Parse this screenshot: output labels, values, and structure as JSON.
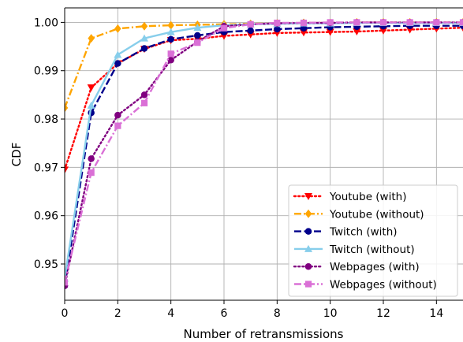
{
  "chart_data": {
    "type": "line",
    "title": "",
    "xlabel": "Number of retransmissions",
    "ylabel": "CDF",
    "xlim": [
      0,
      15
    ],
    "ylim": [
      0.9425,
      1.003
    ],
    "grid": true,
    "legend_position": "lower-right",
    "xticks": [
      "0",
      "2",
      "4",
      "6",
      "8",
      "10",
      "12",
      "14"
    ],
    "yticks": [
      "0.95",
      "0.96",
      "0.97",
      "0.98",
      "0.99",
      "1.00"
    ],
    "x": [
      0,
      1,
      2,
      3,
      4,
      5,
      6,
      7,
      8,
      9,
      10,
      11,
      12,
      13,
      14,
      15
    ],
    "series": [
      {
        "name": "Youtube (with)",
        "color": "#ff0000",
        "linestyle": "dotted",
        "marker": "triangle-down",
        "values": [
          0.9695,
          0.9865,
          0.9915,
          0.9945,
          0.9963,
          0.9966,
          0.9972,
          0.9975,
          0.9978,
          0.9979,
          0.998,
          0.9981,
          0.9983,
          0.9985,
          0.9987,
          0.9989
        ]
      },
      {
        "name": "Youtube (without)",
        "color": "#ffa500",
        "linestyle": "dashdot",
        "marker": "diamond",
        "values": [
          0.9823,
          0.9967,
          0.9987,
          0.9992,
          0.9994,
          0.9995,
          0.9996,
          0.9997,
          0.9998,
          0.9999,
          0.9999,
          1.0,
          1.0,
          1.0,
          1.0,
          1.0
        ]
      },
      {
        "name": "Twitch (with)",
        "color": "#00008b",
        "linestyle": "dashed",
        "marker": "circle",
        "values": [
          0.9455,
          0.9813,
          0.9915,
          0.9946,
          0.9965,
          0.9973,
          0.998,
          0.9983,
          0.9986,
          0.9988,
          0.999,
          0.9991,
          0.9992,
          0.9993,
          0.9993,
          0.9993
        ]
      },
      {
        "name": "Twitch (without)",
        "color": "#87ceeb",
        "linestyle": "solid",
        "marker": "triangle-up",
        "values": [
          0.947,
          0.9828,
          0.9933,
          0.9967,
          0.998,
          0.9989,
          0.9994,
          0.9996,
          0.9997,
          0.9998,
          0.9998,
          0.9999,
          0.9999,
          0.9999,
          0.9999,
          0.9999
        ]
      },
      {
        "name": "Webpages (with)",
        "color": "#800080",
        "linestyle": "dotted",
        "marker": "circle",
        "values": [
          0.9455,
          0.9718,
          0.9808,
          0.985,
          0.9922,
          0.996,
          0.9992,
          0.9996,
          0.9998,
          0.9999,
          0.9999,
          1.0,
          1.0,
          1.0,
          1.0,
          1.0
        ]
      },
      {
        "name": "Webpages (without)",
        "color": "#da70d6",
        "linestyle": "dashdot",
        "marker": "square",
        "values": [
          0.9462,
          0.9689,
          0.9786,
          0.9833,
          0.9935,
          0.9958,
          0.9988,
          0.9996,
          0.9999,
          0.9999,
          1.0,
          1.0,
          1.0,
          1.0,
          1.0,
          1.0
        ]
      }
    ]
  }
}
